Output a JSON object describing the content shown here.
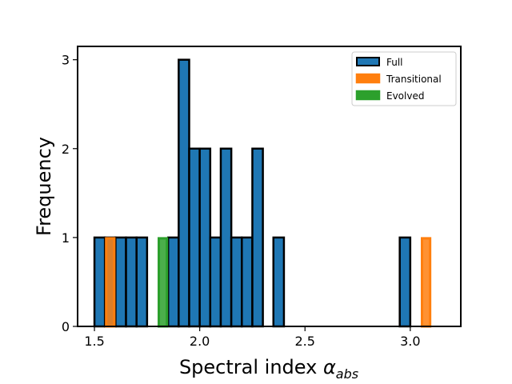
{
  "chart_data": {
    "type": "bar",
    "subtype": "histogram",
    "xlabel": "Spectral index ",
    "xlabel_symbol": "α",
    "xlabel_subscript": "abs",
    "ylabel": "Frequency",
    "xlim": [
      1.42,
      3.24
    ],
    "ylim": [
      0,
      3.15
    ],
    "xticks": [
      "1.5",
      "2.0",
      "2.5",
      "3.0"
    ],
    "xtick_values": [
      1.5,
      2.0,
      2.5,
      3.0
    ],
    "yticks": [
      "0",
      "1",
      "2",
      "3"
    ],
    "ytick_values": [
      0,
      1,
      2,
      3
    ],
    "bin_width": 0.05,
    "legend_position": "upper right",
    "series": [
      {
        "name": "Full",
        "color": "#1f77b4",
        "edge_color": "#000000",
        "bins": [
          {
            "x0": 1.5,
            "x1": 1.55,
            "count": 1
          },
          {
            "x0": 1.55,
            "x1": 1.6,
            "count": 1
          },
          {
            "x0": 1.6,
            "x1": 1.65,
            "count": 1
          },
          {
            "x0": 1.65,
            "x1": 1.7,
            "count": 1
          },
          {
            "x0": 1.7,
            "x1": 1.75,
            "count": 1
          },
          {
            "x0": 1.85,
            "x1": 1.9,
            "count": 1
          },
          {
            "x0": 1.9,
            "x1": 1.95,
            "count": 3
          },
          {
            "x0": 1.95,
            "x1": 2.0,
            "count": 2
          },
          {
            "x0": 2.0,
            "x1": 2.05,
            "count": 2
          },
          {
            "x0": 2.05,
            "x1": 2.1,
            "count": 1
          },
          {
            "x0": 2.1,
            "x1": 2.15,
            "count": 2
          },
          {
            "x0": 2.15,
            "x1": 2.2,
            "count": 1
          },
          {
            "x0": 2.2,
            "x1": 2.25,
            "count": 1
          },
          {
            "x0": 2.25,
            "x1": 2.3,
            "count": 2
          },
          {
            "x0": 2.35,
            "x1": 2.4,
            "count": 1
          },
          {
            "x0": 2.95,
            "x1": 3.0,
            "count": 1
          }
        ]
      },
      {
        "name": "Transitional",
        "color": "#ff7f0e",
        "edge_color": "#ff7f0e",
        "bins": [
          {
            "x0": 1.55,
            "x1": 1.6,
            "count": 1
          },
          {
            "x0": 3.05,
            "x1": 3.1,
            "count": 1
          }
        ]
      },
      {
        "name": "Evolved",
        "color": "#2ca02c",
        "edge_color": "#2ca02c",
        "bins": [
          {
            "x0": 1.8,
            "x1": 1.85,
            "count": 1
          }
        ]
      }
    ]
  }
}
